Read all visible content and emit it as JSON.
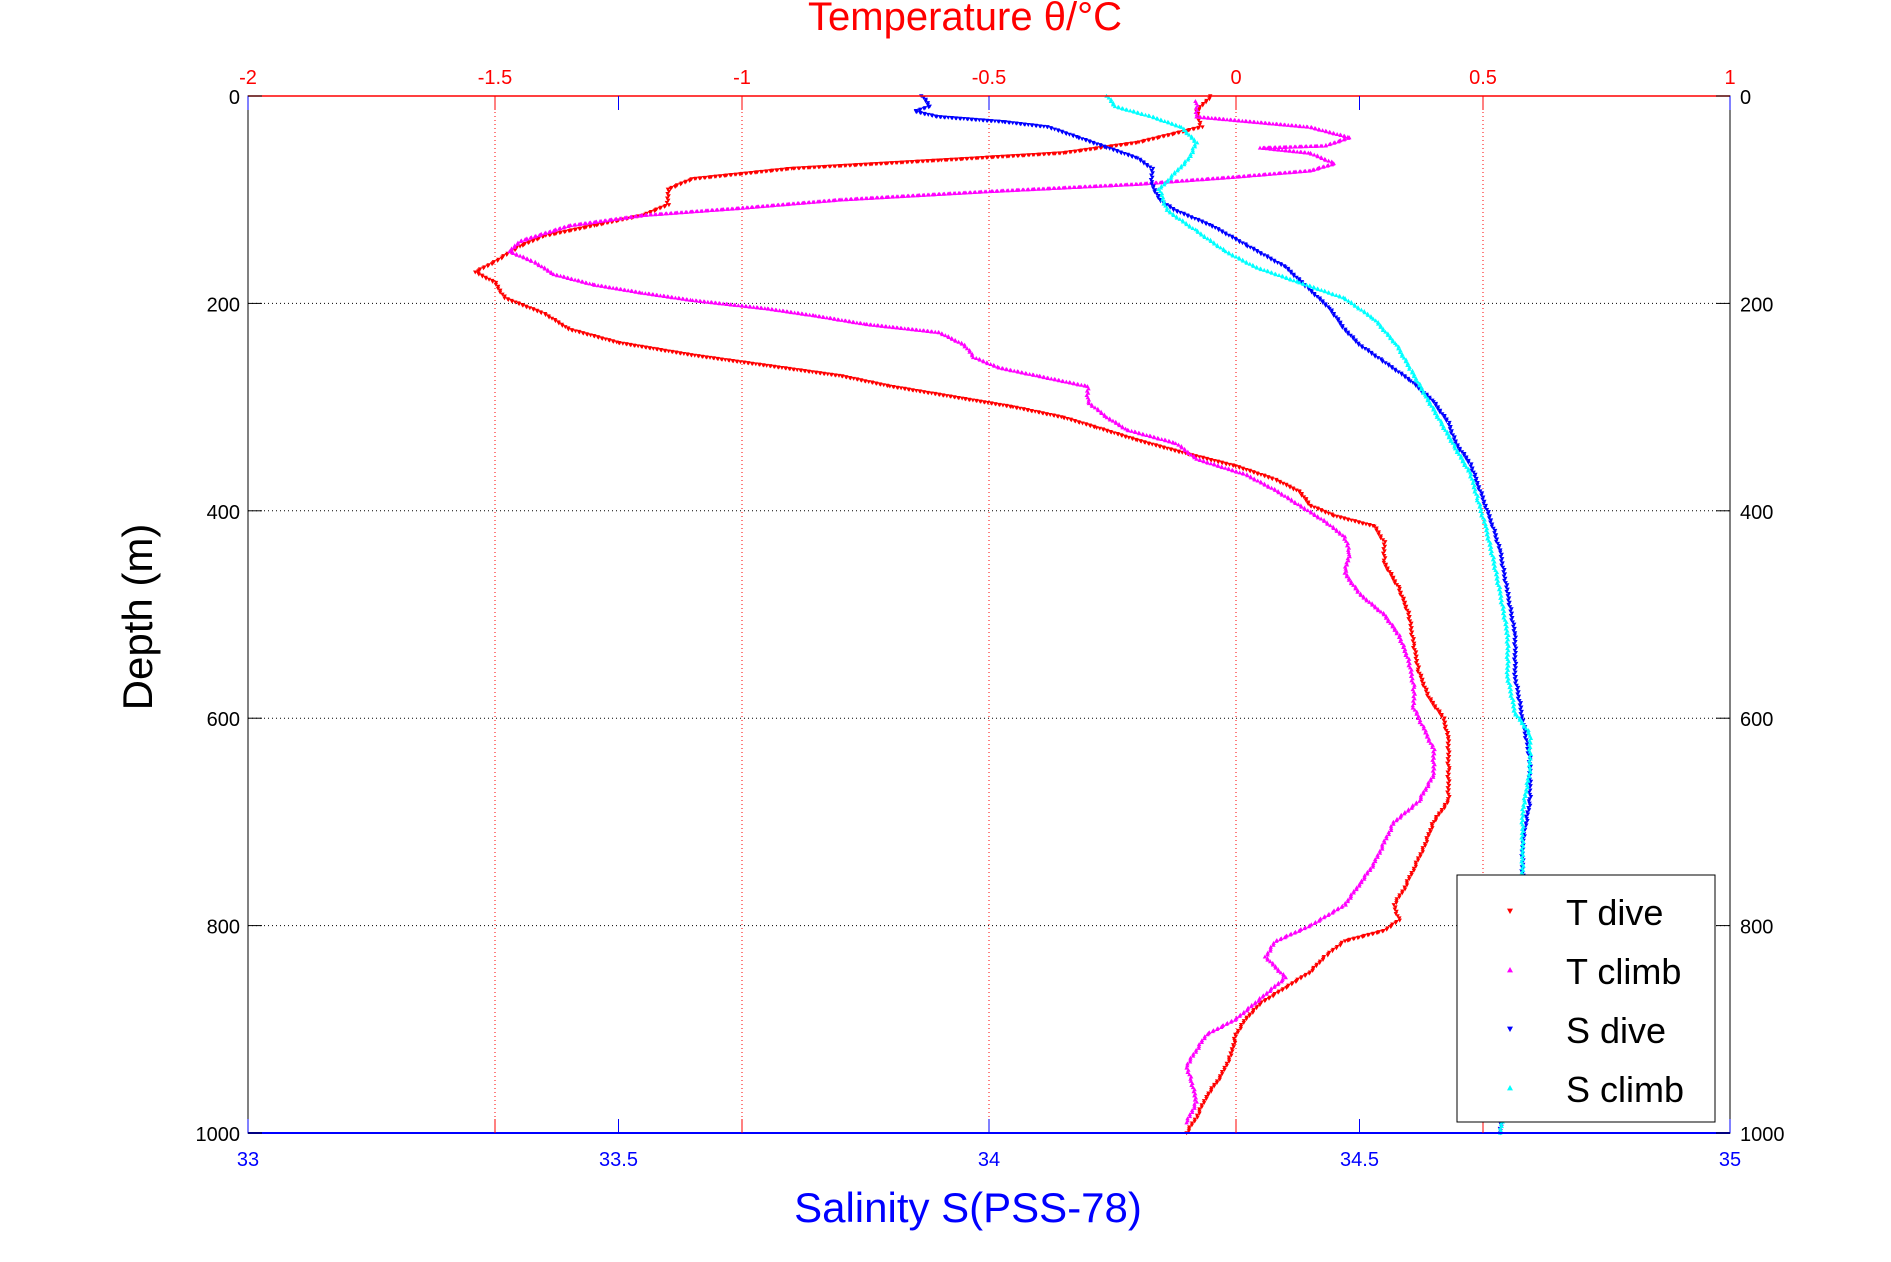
{
  "chart_data": {
    "type": "scatter",
    "title": "Temperature θ/°C",
    "top_axis": {
      "label": "Temperature θ/°C",
      "range": [
        -2,
        1
      ],
      "ticks": [
        -2,
        -1.5,
        -1,
        -0.5,
        0,
        0.5,
        1
      ],
      "tick_labels": [
        "-2",
        "-1.5",
        "-1",
        "-0.5",
        "0",
        "0.5",
        "1"
      ],
      "color": "#ff0000",
      "grid": true
    },
    "bottom_axis": {
      "label": "Salinity S(PSS-78)",
      "range": [
        33,
        35
      ],
      "ticks": [
        33,
        33.5,
        34,
        34.5,
        35
      ],
      "tick_labels": [
        "33",
        "33.5",
        "34",
        "34.5",
        "35"
      ],
      "color": "#0000ff",
      "grid": false
    },
    "y_axis": {
      "label": "Depth (m)",
      "range": [
        0,
        1000
      ],
      "reversed": true,
      "ticks": [
        0,
        200,
        400,
        600,
        800,
        1000
      ],
      "tick_labels": [
        "0",
        "200",
        "400",
        "600",
        "800",
        "1000"
      ],
      "grid": true
    },
    "legend": {
      "placement": "bottom-right",
      "entries": [
        "T dive",
        "T climb",
        "S dive",
        "S climb"
      ]
    },
    "series": [
      {
        "name": "T dive",
        "axis": "temperature",
        "color": "#ff0000",
        "marker": "triangle-down",
        "points": [
          [
            -0.05,
            0
          ],
          [
            -0.08,
            15
          ],
          [
            -0.07,
            30
          ],
          [
            -0.2,
            45
          ],
          [
            -0.35,
            55
          ],
          [
            -0.6,
            62
          ],
          [
            -0.9,
            70
          ],
          [
            -1.1,
            80
          ],
          [
            -1.15,
            90
          ],
          [
            -1.15,
            105
          ],
          [
            -1.2,
            115
          ],
          [
            -1.3,
            125
          ],
          [
            -1.4,
            135
          ],
          [
            -1.45,
            145
          ],
          [
            -1.5,
            160
          ],
          [
            -1.54,
            170
          ],
          [
            -1.5,
            180
          ],
          [
            -1.48,
            195
          ],
          [
            -1.4,
            210
          ],
          [
            -1.35,
            225
          ],
          [
            -1.25,
            238
          ],
          [
            -1.1,
            250
          ],
          [
            -0.95,
            260
          ],
          [
            -0.8,
            270
          ],
          [
            -0.7,
            280
          ],
          [
            -0.55,
            292
          ],
          [
            -0.45,
            300
          ],
          [
            -0.35,
            310
          ],
          [
            -0.28,
            320
          ],
          [
            -0.2,
            332
          ],
          [
            -0.1,
            345
          ],
          [
            0,
            357
          ],
          [
            0.08,
            370
          ],
          [
            0.13,
            382
          ],
          [
            0.15,
            395
          ],
          [
            0.2,
            405
          ],
          [
            0.28,
            415
          ],
          [
            0.3,
            430
          ],
          [
            0.3,
            450
          ],
          [
            0.33,
            475
          ],
          [
            0.35,
            500
          ],
          [
            0.36,
            530
          ],
          [
            0.37,
            555
          ],
          [
            0.39,
            580
          ],
          [
            0.42,
            600
          ],
          [
            0.43,
            620
          ],
          [
            0.43,
            650
          ],
          [
            0.43,
            680
          ],
          [
            0.4,
            700
          ],
          [
            0.38,
            725
          ],
          [
            0.36,
            745
          ],
          [
            0.34,
            765
          ],
          [
            0.32,
            780
          ],
          [
            0.33,
            795
          ],
          [
            0.3,
            805
          ],
          [
            0.22,
            815
          ],
          [
            0.18,
            830
          ],
          [
            0.15,
            845
          ],
          [
            0.1,
            860
          ],
          [
            0.05,
            875
          ],
          [
            0.02,
            890
          ],
          [
            0,
            905
          ],
          [
            -0.01,
            925
          ],
          [
            -0.03,
            945
          ],
          [
            -0.06,
            965
          ],
          [
            -0.08,
            985
          ],
          [
            -0.1,
            1000
          ]
        ]
      },
      {
        "name": "T climb",
        "axis": "temperature",
        "color": "#ff00ff",
        "marker": "triangle-up",
        "points": [
          [
            -0.08,
            5
          ],
          [
            -0.08,
            20
          ],
          [
            0.15,
            30
          ],
          [
            0.23,
            40
          ],
          [
            0.18,
            48
          ],
          [
            0.05,
            50
          ],
          [
            0.15,
            55
          ],
          [
            0.2,
            65
          ],
          [
            0.15,
            72
          ],
          [
            0.0,
            78
          ],
          [
            -0.2,
            85
          ],
          [
            -0.5,
            92
          ],
          [
            -0.8,
            100
          ],
          [
            -1.0,
            108
          ],
          [
            -1.2,
            115
          ],
          [
            -1.35,
            125
          ],
          [
            -1.45,
            140
          ],
          [
            -1.47,
            150
          ],
          [
            -1.42,
            160
          ],
          [
            -1.38,
            172
          ],
          [
            -1.3,
            182
          ],
          [
            -1.2,
            190
          ],
          [
            -1.1,
            197
          ],
          [
            -0.95,
            205
          ],
          [
            -0.85,
            212
          ],
          [
            -0.75,
            220
          ],
          [
            -0.6,
            228
          ],
          [
            -0.55,
            240
          ],
          [
            -0.53,
            252
          ],
          [
            -0.48,
            262
          ],
          [
            -0.4,
            270
          ],
          [
            -0.3,
            280
          ],
          [
            -0.3,
            295
          ],
          [
            -0.26,
            310
          ],
          [
            -0.22,
            322
          ],
          [
            -0.12,
            335
          ],
          [
            -0.08,
            350
          ],
          [
            0.02,
            365
          ],
          [
            0.08,
            380
          ],
          [
            0.13,
            395
          ],
          [
            0.18,
            410
          ],
          [
            0.22,
            425
          ],
          [
            0.23,
            440
          ],
          [
            0.22,
            460
          ],
          [
            0.25,
            480
          ],
          [
            0.3,
            500
          ],
          [
            0.33,
            520
          ],
          [
            0.35,
            545
          ],
          [
            0.36,
            570
          ],
          [
            0.36,
            590
          ],
          [
            0.38,
            610
          ],
          [
            0.4,
            630
          ],
          [
            0.4,
            655
          ],
          [
            0.37,
            680
          ],
          [
            0.32,
            700
          ],
          [
            0.3,
            720
          ],
          [
            0.28,
            740
          ],
          [
            0.25,
            760
          ],
          [
            0.22,
            780
          ],
          [
            0.15,
            800
          ],
          [
            0.08,
            815
          ],
          [
            0.06,
            830
          ],
          [
            0.1,
            850
          ],
          [
            0.05,
            870
          ],
          [
            0.0,
            890
          ],
          [
            -0.06,
            905
          ],
          [
            -0.08,
            920
          ],
          [
            -0.1,
            935
          ],
          [
            -0.09,
            950
          ],
          [
            -0.08,
            970
          ],
          [
            -0.1,
            990
          ]
        ]
      },
      {
        "name": "S dive",
        "axis": "salinity",
        "color": "#0000ff",
        "marker": "triangle-down",
        "points": [
          [
            33.91,
            0
          ],
          [
            33.92,
            10
          ],
          [
            33.9,
            15
          ],
          [
            33.93,
            20
          ],
          [
            34.02,
            25
          ],
          [
            34.08,
            30
          ],
          [
            34.12,
            40
          ],
          [
            34.16,
            50
          ],
          [
            34.2,
            60
          ],
          [
            34.22,
            70
          ],
          [
            34.22,
            85
          ],
          [
            34.23,
            100
          ],
          [
            34.25,
            110
          ],
          [
            34.3,
            125
          ],
          [
            34.35,
            145
          ],
          [
            34.4,
            165
          ],
          [
            34.43,
            185
          ],
          [
            34.46,
            205
          ],
          [
            34.48,
            225
          ],
          [
            34.5,
            240
          ],
          [
            34.53,
            255
          ],
          [
            34.57,
            275
          ],
          [
            34.6,
            295
          ],
          [
            34.62,
            315
          ],
          [
            34.63,
            335
          ],
          [
            34.65,
            355
          ],
          [
            34.66,
            375
          ],
          [
            34.67,
            395
          ],
          [
            34.68,
            415
          ],
          [
            34.69,
            440
          ],
          [
            34.7,
            480
          ],
          [
            34.71,
            520
          ],
          [
            34.71,
            560
          ],
          [
            34.72,
            600
          ],
          [
            34.73,
            640
          ],
          [
            34.73,
            680
          ],
          [
            34.72,
            720
          ],
          [
            34.72,
            760
          ],
          [
            34.72,
            800
          ],
          [
            34.71,
            850
          ],
          [
            34.71,
            900
          ],
          [
            34.7,
            950
          ],
          [
            34.69,
            1000
          ]
        ]
      },
      {
        "name": "S climb",
        "axis": "salinity",
        "color": "#00ffff",
        "marker": "triangle-up",
        "points": [
          [
            34.16,
            0
          ],
          [
            34.17,
            10
          ],
          [
            34.22,
            20
          ],
          [
            34.26,
            30
          ],
          [
            34.28,
            45
          ],
          [
            34.27,
            60
          ],
          [
            34.25,
            75
          ],
          [
            34.23,
            90
          ],
          [
            34.24,
            110
          ],
          [
            34.28,
            130
          ],
          [
            34.32,
            150
          ],
          [
            34.36,
            165
          ],
          [
            34.42,
            180
          ],
          [
            34.48,
            195
          ],
          [
            34.52,
            215
          ],
          [
            34.55,
            240
          ],
          [
            34.57,
            265
          ],
          [
            34.59,
            290
          ],
          [
            34.61,
            315
          ],
          [
            34.63,
            340
          ],
          [
            34.65,
            365
          ],
          [
            34.66,
            390
          ],
          [
            34.67,
            415
          ],
          [
            34.68,
            445
          ],
          [
            34.69,
            480
          ],
          [
            34.7,
            520
          ],
          [
            34.7,
            560
          ],
          [
            34.71,
            595
          ],
          [
            34.73,
            615
          ],
          [
            34.73,
            650
          ],
          [
            34.72,
            690
          ],
          [
            34.72,
            730
          ],
          [
            34.72,
            780
          ],
          [
            34.71,
            830
          ],
          [
            34.71,
            880
          ],
          [
            34.7,
            940
          ],
          [
            34.69,
            1000
          ]
        ]
      }
    ]
  }
}
